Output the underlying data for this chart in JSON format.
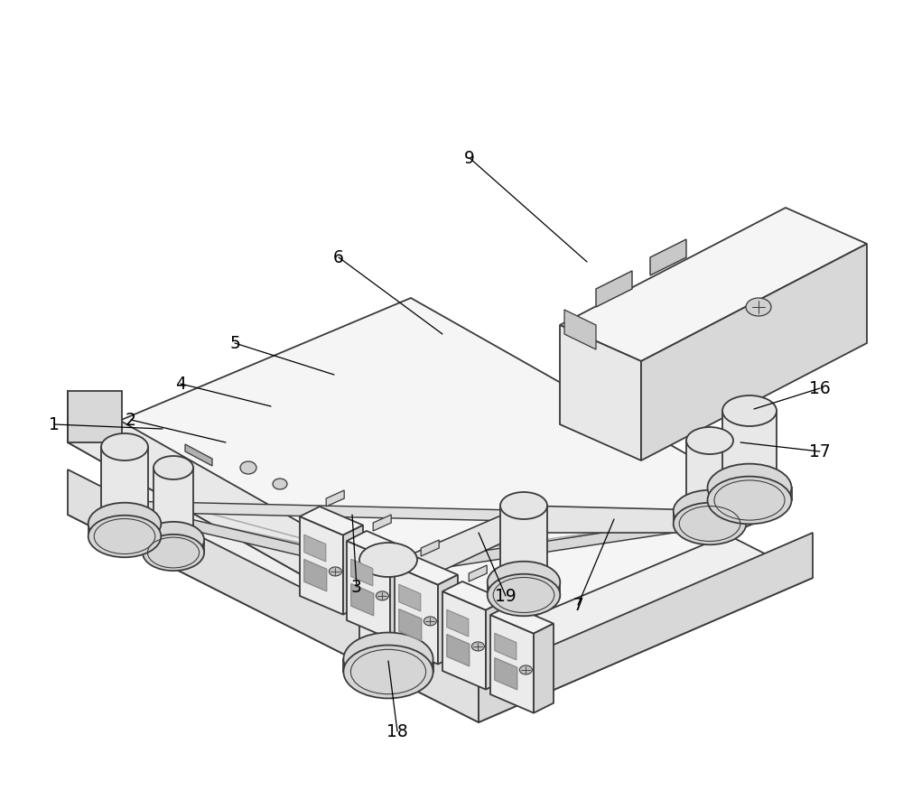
{
  "background_color": "#ffffff",
  "line_color": "#3a3a3a",
  "line_width": 1.3,
  "annotation_color": "#000000",
  "annotation_fontsize": 13.5,
  "fig_width": 10.0,
  "fig_height": 8.96,
  "fill_top": "#f5f5f5",
  "fill_front": "#e8e8e8",
  "fill_right": "#d8d8d8",
  "fill_dark": "#c8c8c8",
  "fill_mid": "#ececec"
}
